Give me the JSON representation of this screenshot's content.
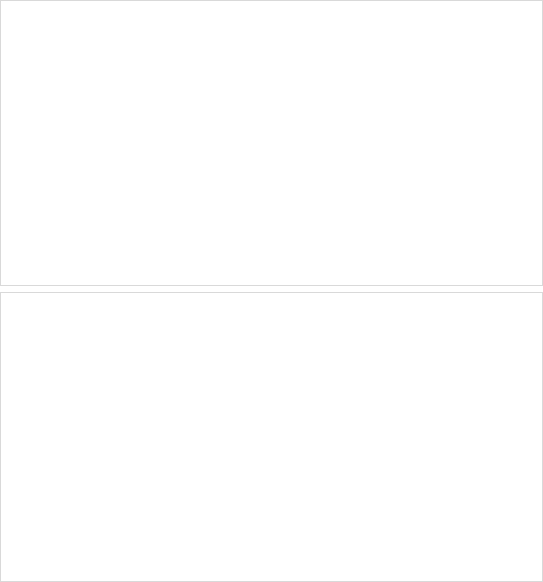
{
  "chart_data": [
    {
      "type": "line",
      "title": "",
      "xlabel": "",
      "ylabel": "",
      "x": [],
      "ylim": [],
      "yticks": [],
      "grid": true,
      "legend": "bottom",
      "series": []
    },
    {
      "type": "line",
      "title": "",
      "xlabel": "",
      "ylabel": "",
      "x": [],
      "ylim": [],
      "yticks": [],
      "grid": true,
      "legend": "bottom",
      "series": []
    }
  ],
  "ui": {
    "empty_notice": ""
  }
}
